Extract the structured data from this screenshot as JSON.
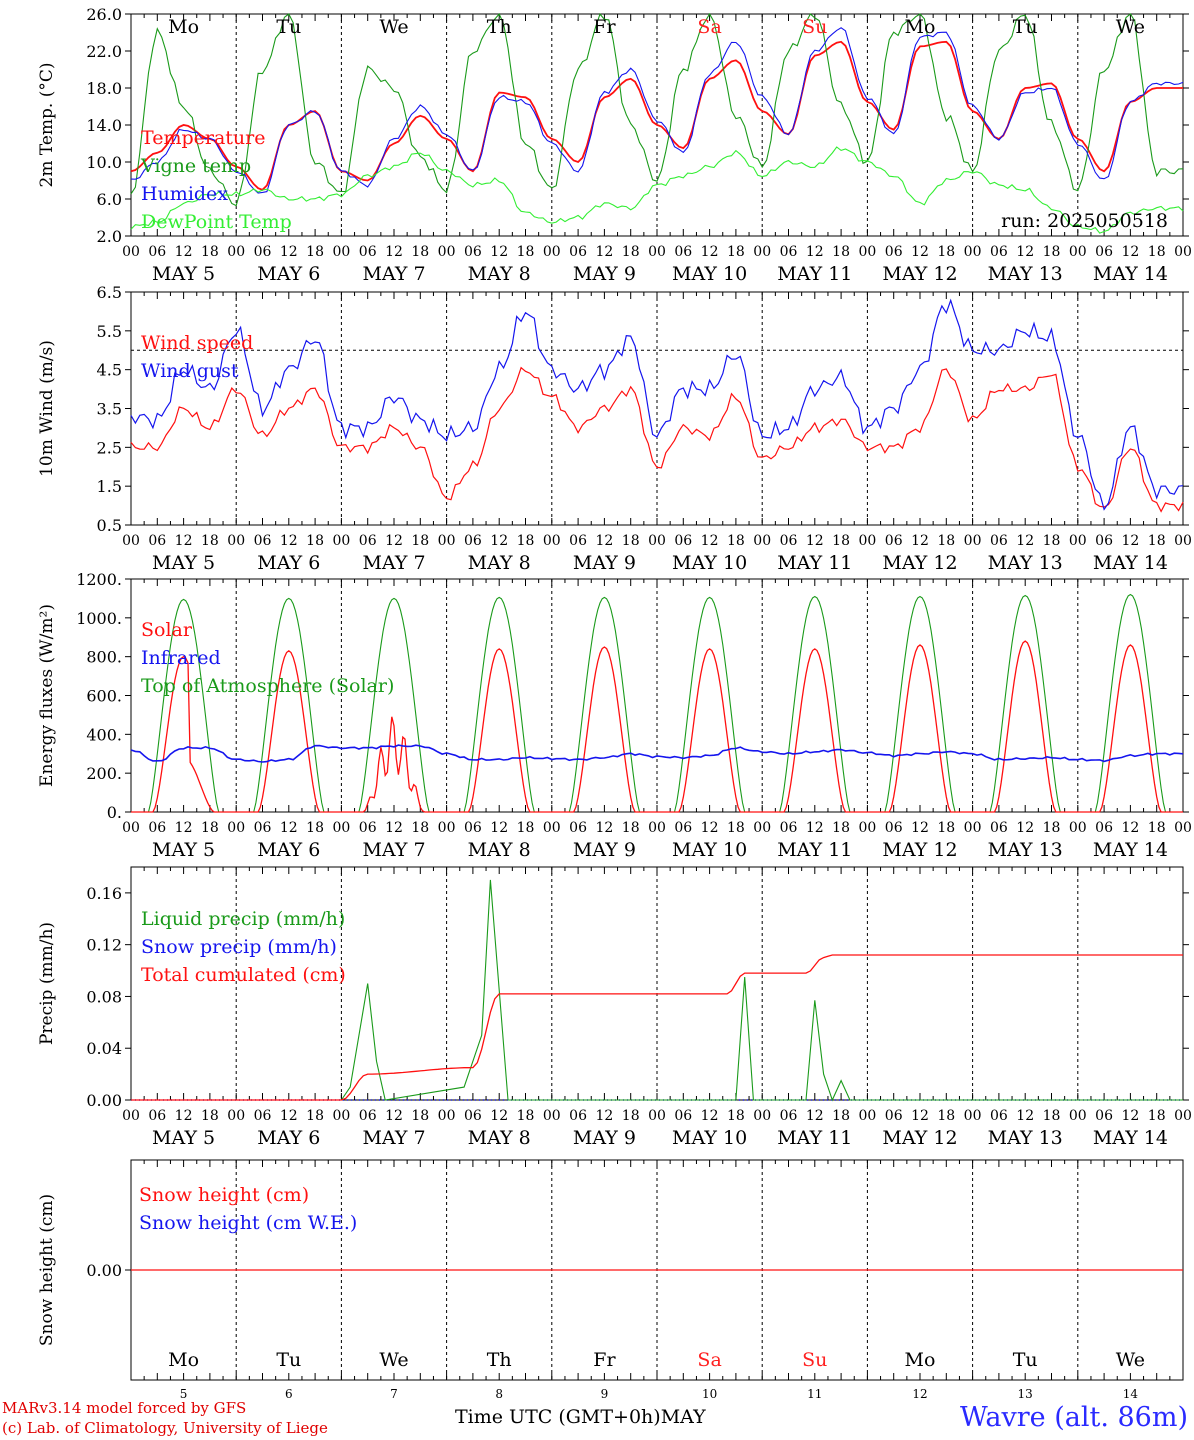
{
  "days": [
    "MAY 5",
    "MAY 6",
    "MAY 7",
    "MAY 8",
    "MAY 9",
    "MAY 10",
    "MAY 11",
    "MAY 12",
    "MAY 13",
    "MAY 14"
  ],
  "weekdays": [
    "Mo",
    "Tu",
    "We",
    "Th",
    "Fr",
    "Sa",
    "Su",
    "Mo",
    "Tu",
    "We"
  ],
  "weekday_colors": [
    "#000000",
    "#000000",
    "#000000",
    "#000000",
    "#000000",
    "#ff2020",
    "#ff2020",
    "#000000",
    "#000000",
    "#000000"
  ],
  "day_numbers": [
    "5",
    "6",
    "7",
    "8",
    "9",
    "10",
    "11",
    "12",
    "13",
    "14"
  ],
  "hour_ticks": [
    "00",
    "06",
    "12",
    "18"
  ],
  "run_label": "run: 2025050518",
  "footer": {
    "credit_line1": "MARv3.14 model forced by GFS",
    "credit_line2": "(c) Lab. of Climatology, University of Liege",
    "x_title": "Time UTC (GMT+0h)MAY",
    "station": "Wavre (alt. 86m)"
  },
  "colors": {
    "red": "#ff1010",
    "green": "#1a9a1a",
    "blue": "#1515ee",
    "lightgreen": "#33ee33"
  },
  "chart_data": [
    {
      "type": "line",
      "ylabel": "2m Temp. (°C)",
      "yticks": [
        "26.0",
        "22.0",
        "18.0",
        "14.0",
        "10.0",
        "6.0",
        "2.0"
      ],
      "ylim": [
        2,
        26
      ],
      "grid": "vertical dashed at 00 UTC",
      "legend_placement": "left",
      "series": [
        {
          "name": "Temperature",
          "color": "red",
          "x_hours": [
            0,
            6,
            12,
            18,
            24,
            30,
            36,
            42,
            48,
            54,
            60,
            66,
            72,
            78,
            84,
            90,
            96,
            102,
            108,
            114,
            120,
            126,
            132,
            138,
            144,
            150,
            156,
            162,
            168,
            174,
            180,
            186,
            192,
            198,
            204,
            210,
            216,
            222,
            228,
            234
          ],
          "values": [
            9.0,
            11.0,
            14.0,
            12.5,
            9.5,
            7.0,
            14.0,
            15.5,
            9.0,
            8.0,
            12.0,
            15.0,
            12.5,
            9.0,
            17.5,
            17.0,
            12.5,
            10.0,
            17.0,
            19.0,
            14.0,
            11.5,
            19.0,
            21.0,
            15.5,
            13.0,
            21.5,
            23.0,
            16.5,
            13.5,
            22.5,
            23.0,
            15.5,
            12.5,
            18.0,
            18.5,
            12.5,
            9.0,
            16.5,
            18.0
          ]
        },
        {
          "name": "Vigne temp",
          "color": "green",
          "x_hours": [
            0,
            6,
            12,
            18,
            24,
            30,
            36,
            42,
            48,
            54,
            60,
            66,
            72,
            78,
            84,
            90,
            96,
            102,
            108,
            114,
            120,
            126,
            132,
            138,
            144,
            150,
            156,
            162,
            168,
            174,
            180,
            186,
            192,
            198,
            204,
            210,
            216,
            222,
            228,
            234
          ],
          "values": [
            6.5,
            24.0,
            16.0,
            9.0,
            5.5,
            20.0,
            26.0,
            10.0,
            6.5,
            20.0,
            18.0,
            10.5,
            7.0,
            22.0,
            26.0,
            12.0,
            7.0,
            20.0,
            26.0,
            14.0,
            8.0,
            20.0,
            26.0,
            15.0,
            9.5,
            22.0,
            26.0,
            16.0,
            10.0,
            24.0,
            26.0,
            15.0,
            9.0,
            22.0,
            26.0,
            14.0,
            7.0,
            20.0,
            26.0,
            9.0
          ]
        },
        {
          "name": "Humidex",
          "color": "blue",
          "x_hours": [
            0,
            6,
            12,
            18,
            24,
            30,
            36,
            42,
            48,
            54,
            60,
            66,
            72,
            78,
            84,
            90,
            96,
            102,
            108,
            114,
            120,
            126,
            132,
            138,
            144,
            150,
            156,
            162,
            168,
            174,
            180,
            186,
            192,
            198,
            204,
            210,
            216,
            222,
            228,
            234
          ],
          "values": [
            8.0,
            10.0,
            13.5,
            12.5,
            9.0,
            6.5,
            14.0,
            15.5,
            9.0,
            7.5,
            12.5,
            16.0,
            13.0,
            9.0,
            17.0,
            16.5,
            12.0,
            9.0,
            17.5,
            20.0,
            14.5,
            11.0,
            19.5,
            23.0,
            17.0,
            13.0,
            22.0,
            24.5,
            17.0,
            13.0,
            23.5,
            24.0,
            16.0,
            12.5,
            17.5,
            18.0,
            12.0,
            8.0,
            16.5,
            18.5
          ]
        },
        {
          "name": "DewPoint Temp",
          "color": "lightgreen",
          "x_hours": [
            0,
            6,
            12,
            18,
            24,
            30,
            36,
            42,
            48,
            54,
            60,
            66,
            72,
            78,
            84,
            90,
            96,
            102,
            108,
            114,
            120,
            126,
            132,
            138,
            144,
            150,
            156,
            162,
            168,
            174,
            180,
            186,
            192,
            198,
            204,
            210,
            216,
            222,
            228,
            234
          ],
          "values": [
            3.0,
            3.5,
            5.5,
            6.5,
            6.5,
            7.0,
            6.0,
            6.0,
            6.5,
            8.5,
            9.5,
            11.0,
            9.0,
            7.5,
            8.0,
            4.5,
            3.5,
            4.0,
            5.5,
            5.0,
            7.5,
            8.5,
            9.5,
            11.0,
            8.5,
            10.0,
            9.5,
            11.5,
            10.0,
            8.5,
            5.5,
            8.0,
            9.0,
            7.5,
            7.0,
            5.0,
            3.0,
            2.5,
            4.5,
            5.0
          ]
        }
      ]
    },
    {
      "type": "line",
      "ylabel": "10m Wind (m/s)",
      "yticks": [
        "6.5",
        "5.5",
        "4.5",
        "3.5",
        "2.5",
        "1.5",
        "0.5"
      ],
      "ylim": [
        0.5,
        6.5
      ],
      "reference_line": 5.0,
      "legend_placement": "left",
      "series": [
        {
          "name": "Wind speed",
          "color": "red",
          "x_hours": [
            0,
            6,
            12,
            18,
            24,
            30,
            36,
            42,
            48,
            54,
            60,
            66,
            72,
            78,
            84,
            90,
            96,
            102,
            108,
            114,
            120,
            126,
            132,
            138,
            144,
            150,
            156,
            162,
            168,
            174,
            180,
            186,
            192,
            198,
            204,
            210,
            216,
            222,
            228,
            234
          ],
          "values": [
            2.5,
            2.5,
            3.5,
            3.0,
            4.0,
            2.8,
            3.5,
            4.0,
            2.5,
            2.5,
            3.0,
            2.5,
            1.2,
            2.0,
            3.5,
            4.5,
            3.8,
            3.0,
            3.5,
            4.0,
            2.0,
            3.0,
            2.8,
            3.8,
            2.2,
            2.5,
            3.0,
            3.2,
            2.5,
            2.5,
            3.0,
            4.5,
            3.2,
            4.0,
            4.0,
            4.4,
            2.0,
            0.9,
            2.5,
            1.0
          ]
        },
        {
          "name": "Wind gust",
          "color": "blue",
          "x_hours": [
            0,
            6,
            12,
            18,
            24,
            30,
            36,
            42,
            48,
            54,
            60,
            66,
            72,
            78,
            84,
            90,
            96,
            102,
            108,
            114,
            120,
            126,
            132,
            138,
            144,
            150,
            156,
            162,
            168,
            174,
            180,
            186,
            192,
            198,
            204,
            210,
            216,
            222,
            228,
            234
          ],
          "values": [
            3.3,
            3.2,
            4.5,
            4.0,
            5.5,
            3.5,
            4.5,
            5.3,
            3.0,
            3.0,
            3.8,
            3.2,
            2.8,
            3.0,
            4.5,
            6.0,
            4.5,
            4.0,
            4.5,
            5.3,
            2.8,
            4.0,
            4.0,
            4.9,
            2.8,
            3.0,
            4.0,
            4.3,
            3.0,
            3.5,
            4.5,
            6.2,
            5.0,
            5.0,
            5.5,
            5.3,
            2.8,
            1.0,
            3.0,
            1.4
          ]
        }
      ]
    },
    {
      "type": "line",
      "ylabel": "Energy fluxes (W/m²)",
      "yticks": [
        "1200.",
        "1000.",
        "800.",
        "600.",
        "400.",
        "200.",
        "0."
      ],
      "ylim": [
        0,
        1200
      ],
      "legend_placement": "left",
      "series": [
        {
          "name": "Solar",
          "color": "red",
          "peaks": [
            800,
            830,
            500,
            840,
            850,
            840,
            840,
            860,
            880,
            860
          ]
        },
        {
          "name": "Infrared",
          "color": "blue",
          "x_hours": [
            0,
            6,
            12,
            18,
            24,
            30,
            36,
            42,
            48,
            54,
            60,
            66,
            72,
            78,
            84,
            90,
            96,
            102,
            108,
            114,
            120,
            126,
            132,
            138,
            144,
            150,
            156,
            162,
            168,
            174,
            180,
            186,
            192,
            198,
            204,
            210,
            216,
            222,
            228,
            234
          ],
          "values": [
            320,
            260,
            330,
            330,
            270,
            260,
            270,
            340,
            330,
            330,
            340,
            340,
            300,
            270,
            270,
            280,
            275,
            270,
            280,
            300,
            285,
            280,
            290,
            330,
            310,
            300,
            310,
            320,
            305,
            290,
            300,
            310,
            300,
            270,
            275,
            280,
            270,
            265,
            290,
            300
          ]
        },
        {
          "name": "Top of Atmosphere (Solar)",
          "color": "green",
          "peaks": [
            1095,
            1100,
            1100,
            1105,
            1105,
            1105,
            1110,
            1110,
            1115,
            1120
          ]
        }
      ]
    },
    {
      "type": "line",
      "ylabel": "Precip (mm/h)",
      "yticks": [
        "0.16",
        "0.12",
        "0.08",
        "0.04",
        "0.00"
      ],
      "ylim": [
        0,
        0.18
      ],
      "legend_placement": "left",
      "series": [
        {
          "name": "Liquid precip (mm/h)",
          "color": "green",
          "events": [
            [
              50,
              0.01
            ],
            [
              54,
              0.09
            ],
            [
              56,
              0.03
            ],
            [
              58,
              0.0
            ],
            [
              76,
              0.01
            ],
            [
              80,
              0.05
            ],
            [
              82,
              0.17
            ],
            [
              84,
              0.085
            ],
            [
              86,
              0.0
            ],
            [
              138,
              0.0
            ],
            [
              140,
              0.095
            ],
            [
              142,
              0.0
            ],
            [
              154,
              0.0
            ],
            [
              156,
              0.077
            ],
            [
              158,
              0.02
            ],
            [
              160,
              0.0
            ],
            [
              162,
              0.015
            ],
            [
              164,
              0.0
            ]
          ]
        },
        {
          "name": "Snow precip (mm/h)",
          "color": "blue",
          "values": []
        },
        {
          "name": "Total cumulated (cm)",
          "color": "red",
          "steps": [
            [
              0,
              0
            ],
            [
              48,
              0.0
            ],
            [
              54,
              0.02
            ],
            [
              78,
              0.025
            ],
            [
              84,
              0.082
            ],
            [
              136,
              0.082
            ],
            [
              140,
              0.098
            ],
            [
              154,
              0.098
            ],
            [
              158,
              0.11
            ],
            [
              160,
              0.112
            ],
            [
              240,
              0.112
            ]
          ]
        }
      ]
    },
    {
      "type": "line",
      "ylabel": "Snow height (cm)",
      "yticks": [
        "0.00"
      ],
      "legend_placement": "left",
      "series": [
        {
          "name": "Snow height (cm)",
          "color": "red",
          "values": [
            0.0
          ]
        },
        {
          "name": "Snow height (cm W.E.)",
          "color": "blue",
          "values": [
            0.0
          ]
        }
      ]
    }
  ]
}
